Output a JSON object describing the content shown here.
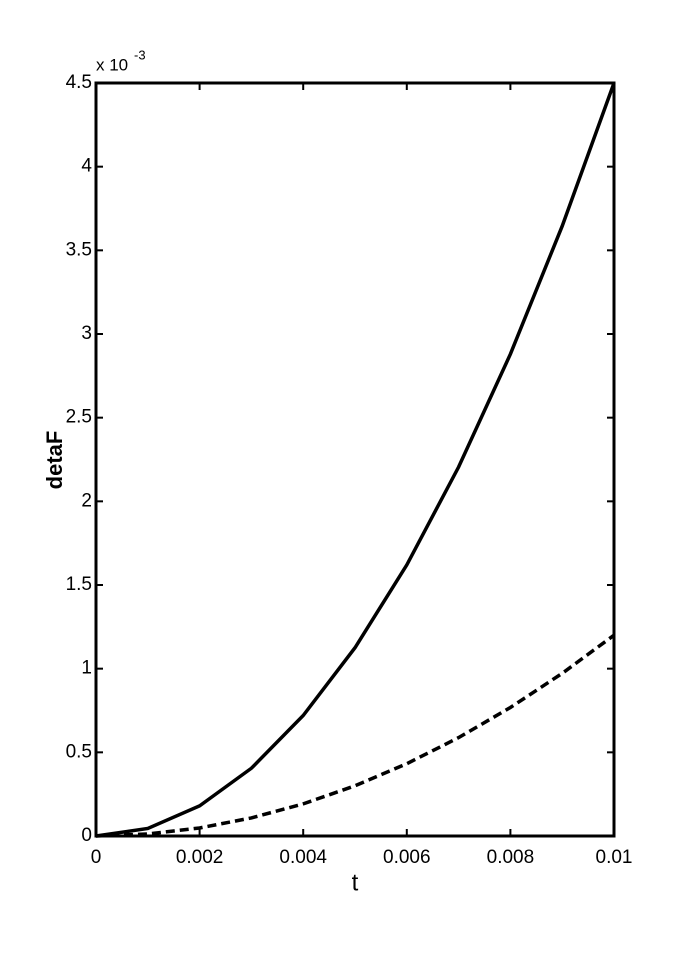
{
  "chart_data": {
    "type": "line",
    "x_label": "t",
    "y_label": "detaF",
    "y_scale_label": "x 10",
    "y_scale_exponent": "-3",
    "x": [
      0,
      0.001,
      0.002,
      0.003,
      0.004,
      0.005,
      0.006,
      0.007,
      0.008,
      0.009,
      0.01
    ],
    "series": [
      {
        "color": "#000000",
        "dash": false,
        "values": [
          0,
          0.045,
          0.18,
          0.405,
          0.72,
          1.125,
          1.62,
          2.205,
          2.88,
          3.645,
          4.5
        ]
      },
      {
        "color": "#000000",
        "dash": true,
        "values": [
          0,
          0.012,
          0.048,
          0.108,
          0.192,
          0.3,
          0.432,
          0.588,
          0.768,
          0.972,
          1.2
        ]
      }
    ],
    "xlim": [
      0,
      0.01
    ],
    "xticks": [
      0,
      0.002,
      0.004,
      0.006,
      0.008,
      0.01
    ],
    "ylim": [
      0,
      4.5
    ],
    "yticks": [
      0,
      0.5,
      1,
      1.5,
      2,
      2.5,
      3,
      3.5,
      4,
      4.5
    ],
    "grid": false
  }
}
